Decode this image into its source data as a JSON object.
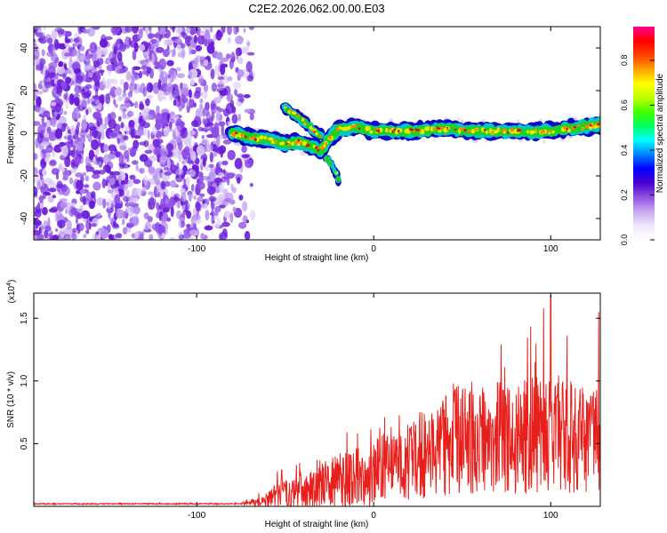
{
  "title": "C2E2.2026.062.00.00.E03",
  "colors": {
    "snr_line": "#e8201c",
    "track": [
      "#0a0ac8",
      "#00c8c8",
      "#20d020",
      "#e8e800",
      "#ff8000",
      "#e00000"
    ],
    "noise": [
      "#6a1bd8",
      "#8c4be6",
      "#b58ff0",
      "#d9c8f8"
    ],
    "colorbar_stops": [
      "#ffffff",
      "#f0e6fb",
      "#c8a8f0",
      "#9050e0",
      "#4a00d0",
      "#0000ff",
      "#0080ff",
      "#00ffff",
      "#00ff60",
      "#40ff00",
      "#c0ff00",
      "#ffff00",
      "#ffa000",
      "#ff4000",
      "#ff0000",
      "#ff0090"
    ]
  },
  "chart_data": [
    {
      "type": "heatmap",
      "xlabel": "Height of straight line (km)",
      "ylabel": "Frequency (Hz)",
      "xlim": [
        -192,
        128
      ],
      "ylim": [
        -50,
        50
      ],
      "xticks": [
        -100,
        0,
        100
      ],
      "yticks": [
        -40,
        -20,
        0,
        20,
        40
      ],
      "colorbar": {
        "label": "Normalized spectral amplitude",
        "range": [
          0,
          0.95
        ],
        "ticks": [
          0.0,
          0.2,
          0.4,
          0.6,
          0.8
        ]
      },
      "noise_region_x": [
        -192,
        -68
      ],
      "main_track": {
        "x": [
          -80,
          -70,
          -60,
          -50,
          -42,
          -35,
          -30,
          -20,
          -10,
          0,
          20,
          40,
          60,
          80,
          100,
          128
        ],
        "y": [
          0,
          -2,
          -3,
          -5,
          -4,
          -6,
          -8,
          2,
          3,
          1,
          1,
          2,
          1,
          1,
          1,
          4
        ]
      },
      "branch_up": {
        "x": [
          -50,
          -45,
          -40,
          -35,
          -30
        ],
        "y": [
          12,
          9,
          6,
          2,
          -1
        ]
      },
      "branch_down": {
        "x": [
          -35,
          -30,
          -25,
          -22,
          -20
        ],
        "y": [
          -5,
          -9,
          -13,
          -17,
          -22
        ]
      }
    },
    {
      "type": "line",
      "xlabel": "Height of straight line (km)",
      "ylabel": "SNR (10 * v/v)",
      "y_multiplier": "(x10",
      "y_multiplier_exp": "4",
      "y_multiplier_close": ")",
      "xlim": [
        -192,
        128
      ],
      "ylim": [
        0,
        1.7
      ],
      "xticks": [
        -100,
        0,
        100
      ],
      "yticks": [
        0.5,
        1.0,
        1.5
      ],
      "ytick_labels": [
        "0.5",
        "1.0",
        "1.5"
      ],
      "envelope": {
        "x": [
          -192,
          -75,
          -60,
          -55,
          -45,
          -35,
          -25,
          -15,
          -5,
          5,
          15,
          25,
          35,
          45,
          55,
          65,
          75,
          85,
          95,
          105,
          115,
          128
        ],
        "base": [
          0.02,
          0.02,
          0.04,
          0.08,
          0.1,
          0.14,
          0.18,
          0.22,
          0.24,
          0.3,
          0.34,
          0.4,
          0.46,
          0.52,
          0.56,
          0.54,
          0.56,
          0.58,
          0.6,
          0.58,
          0.52,
          0.55
        ],
        "amp": [
          0.005,
          0.005,
          0.06,
          0.12,
          0.12,
          0.16,
          0.2,
          0.24,
          0.25,
          0.28,
          0.3,
          0.34,
          0.4,
          0.44,
          0.46,
          0.44,
          0.46,
          0.48,
          0.5,
          0.48,
          0.44,
          0.45
        ]
      },
      "peaks": [
        {
          "x": -52,
          "y": 0.29
        },
        {
          "x": -15,
          "y": 0.59
        },
        {
          "x": 45,
          "y": 0.98
        },
        {
          "x": 96,
          "y": 1.58
        },
        {
          "x": 100,
          "y": 1.68
        },
        {
          "x": 127,
          "y": 1.55
        }
      ]
    }
  ]
}
